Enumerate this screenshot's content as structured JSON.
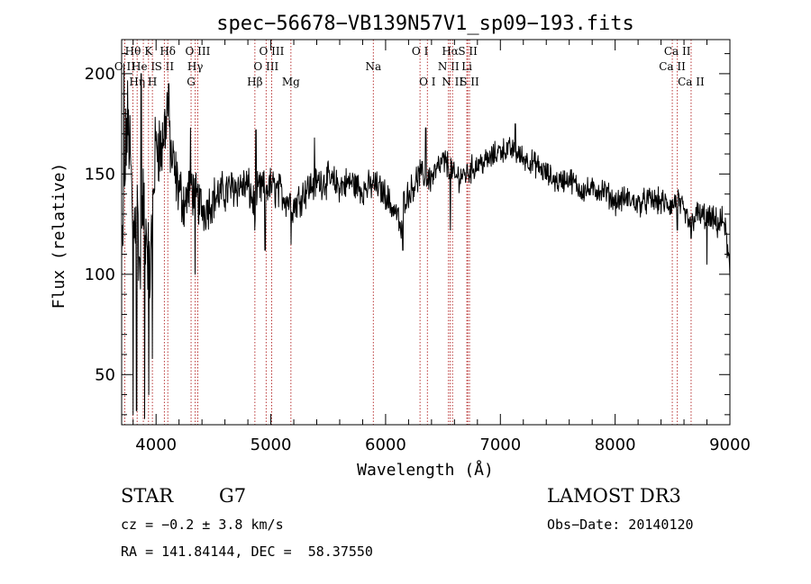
{
  "chart_data": {
    "type": "line",
    "title": "spec−56678−VB139N57V1_sp09−193.fits",
    "xlabel": "Wavelength (Å)",
    "ylabel": "Flux (relative)",
    "xlim": [
      3700,
      9000
    ],
    "ylim": [
      25,
      217
    ],
    "x_ticks": [
      4000,
      5000,
      6000,
      7000,
      8000,
      9000
    ],
    "y_ticks": [
      50,
      100,
      150,
      200
    ],
    "spectrum_anchors": {
      "x": [
        3700,
        3720,
        3740,
        3760,
        3780,
        3800,
        3830,
        3860,
        3890,
        3920,
        3950,
        3980,
        4010,
        4040,
        4080,
        4100,
        4130,
        4170,
        4200,
        4250,
        4300,
        4340,
        4380,
        4420,
        4500,
        4600,
        4700,
        4800,
        4850,
        4900,
        5000,
        5100,
        5200,
        5300,
        5400,
        5500,
        5600,
        5700,
        5800,
        5900,
        6000,
        6050,
        6100,
        6140,
        6160,
        6200,
        6300,
        6350,
        6400,
        6500,
        6560,
        6600,
        6700,
        6800,
        6900,
        7000,
        7100,
        7200,
        7300,
        7400,
        7500,
        7600,
        7700,
        7800,
        7900,
        8000,
        8100,
        8200,
        8300,
        8400,
        8500,
        8540,
        8600,
        8660,
        8700,
        8800,
        8900,
        8950,
        9000
      ],
      "y": [
        105,
        130,
        170,
        175,
        150,
        120,
        140,
        100,
        135,
        120,
        100,
        150,
        170,
        160,
        175,
        185,
        160,
        148,
        142,
        135,
        145,
        140,
        135,
        132,
        138,
        141,
        144,
        144,
        135,
        142,
        144,
        140,
        134,
        142,
        146,
        147,
        144,
        146,
        142,
        145,
        140,
        134,
        130,
        120,
        138,
        140,
        150,
        148,
        148,
        156,
        154,
        148,
        150,
        155,
        157,
        162,
        162,
        158,
        155,
        150,
        146,
        148,
        142,
        142,
        142,
        136,
        138,
        135,
        137,
        136,
        134,
        138,
        130,
        125,
        130,
        128,
        125,
        127,
        102
      ]
    },
    "noise_profile": {
      "x": [
        3700,
        3800,
        4000,
        4200,
        4500,
        5000,
        6000,
        6500,
        7000,
        8000,
        9000
      ],
      "amplitude": [
        18,
        22,
        18,
        12,
        9,
        8,
        6,
        6,
        5,
        5,
        6
      ]
    },
    "dips": [
      {
        "x": 3800,
        "y": 30
      },
      {
        "x": 3830,
        "y": 32
      },
      {
        "x": 3900,
        "y": 28
      },
      {
        "x": 3935,
        "y": 40
      },
      {
        "x": 3968,
        "y": 58
      },
      {
        "x": 4340,
        "y": 100
      },
      {
        "x": 4861,
        "y": 122
      },
      {
        "x": 4950,
        "y": 112
      },
      {
        "x": 5175,
        "y": 115
      },
      {
        "x": 6150,
        "y": 112
      },
      {
        "x": 6563,
        "y": 122
      },
      {
        "x": 8542,
        "y": 122
      },
      {
        "x": 8662,
        "y": 118
      },
      {
        "x": 8800,
        "y": 105
      },
      {
        "x": 9000,
        "y": 98
      }
    ],
    "peaks": [
      {
        "x": 3720,
        "y": 205
      },
      {
        "x": 3870,
        "y": 200
      },
      {
        "x": 4110,
        "y": 195
      },
      {
        "x": 4300,
        "y": 173
      },
      {
        "x": 4870,
        "y": 172
      },
      {
        "x": 5380,
        "y": 168
      },
      {
        "x": 6350,
        "y": 173
      },
      {
        "x": 7130,
        "y": 175
      }
    ],
    "line_markers": [
      {
        "label": "O II",
        "x": 3727,
        "row": 2
      },
      {
        "label": "Hθ",
        "x": 3798,
        "row": 1
      },
      {
        "label": "Hη",
        "x": 3835,
        "row": 3
      },
      {
        "label": "He I",
        "x": 3889,
        "row": 2
      },
      {
        "label": "K",
        "x": 3934,
        "row": 1
      },
      {
        "label": "H",
        "x": 3968,
        "row": 3
      },
      {
        "label": "S II",
        "x": 4072,
        "row": 2
      },
      {
        "label": "Hδ",
        "x": 4102,
        "row": 1
      },
      {
        "label": "G",
        "x": 4305,
        "row": 3
      },
      {
        "label": "Hγ",
        "x": 4341,
        "row": 2
      },
      {
        "label": "O III",
        "x": 4363,
        "row": 1
      },
      {
        "label": "Hβ",
        "x": 4861,
        "row": 3
      },
      {
        "label": "O III",
        "x": 4959,
        "row": 2
      },
      {
        "label": "O III",
        "x": 5007,
        "row": 1
      },
      {
        "label": "Mg",
        "x": 5175,
        "row": 3
      },
      {
        "label": "Na",
        "x": 5893,
        "row": 2
      },
      {
        "label": "O I",
        "x": 6300,
        "row": 1
      },
      {
        "label": "O I",
        "x": 6364,
        "row": 3
      },
      {
        "label": "N II",
        "x": 6548,
        "row": 2
      },
      {
        "label": "Hα",
        "x": 6563,
        "row": 1
      },
      {
        "label": "N II",
        "x": 6583,
        "row": 3
      },
      {
        "label": "Li",
        "x": 6708,
        "row": 2
      },
      {
        "label": "S II",
        "x": 6716,
        "row": 1
      },
      {
        "label": "S II",
        "x": 6731,
        "row": 3
      },
      {
        "label": "Ca II",
        "x": 8498,
        "row": 2
      },
      {
        "label": "Ca II",
        "x": 8542,
        "row": 1
      },
      {
        "label": "Ca II",
        "x": 8662,
        "row": 3
      }
    ]
  },
  "info": {
    "class_label": "STAR",
    "subclass_label": "G7",
    "survey_label": "LAMOST DR3",
    "cz_text": "cz = −0.2 ± 3.8 km/s",
    "obs_date_text": "Obs−Date: 20140120",
    "radec_text": "RA = 141.84144, DEC =  58.37550"
  },
  "colors": {
    "spectrum": "#000000",
    "marker_line": "#b22222",
    "axis": "#000000",
    "background": "#ffffff"
  }
}
